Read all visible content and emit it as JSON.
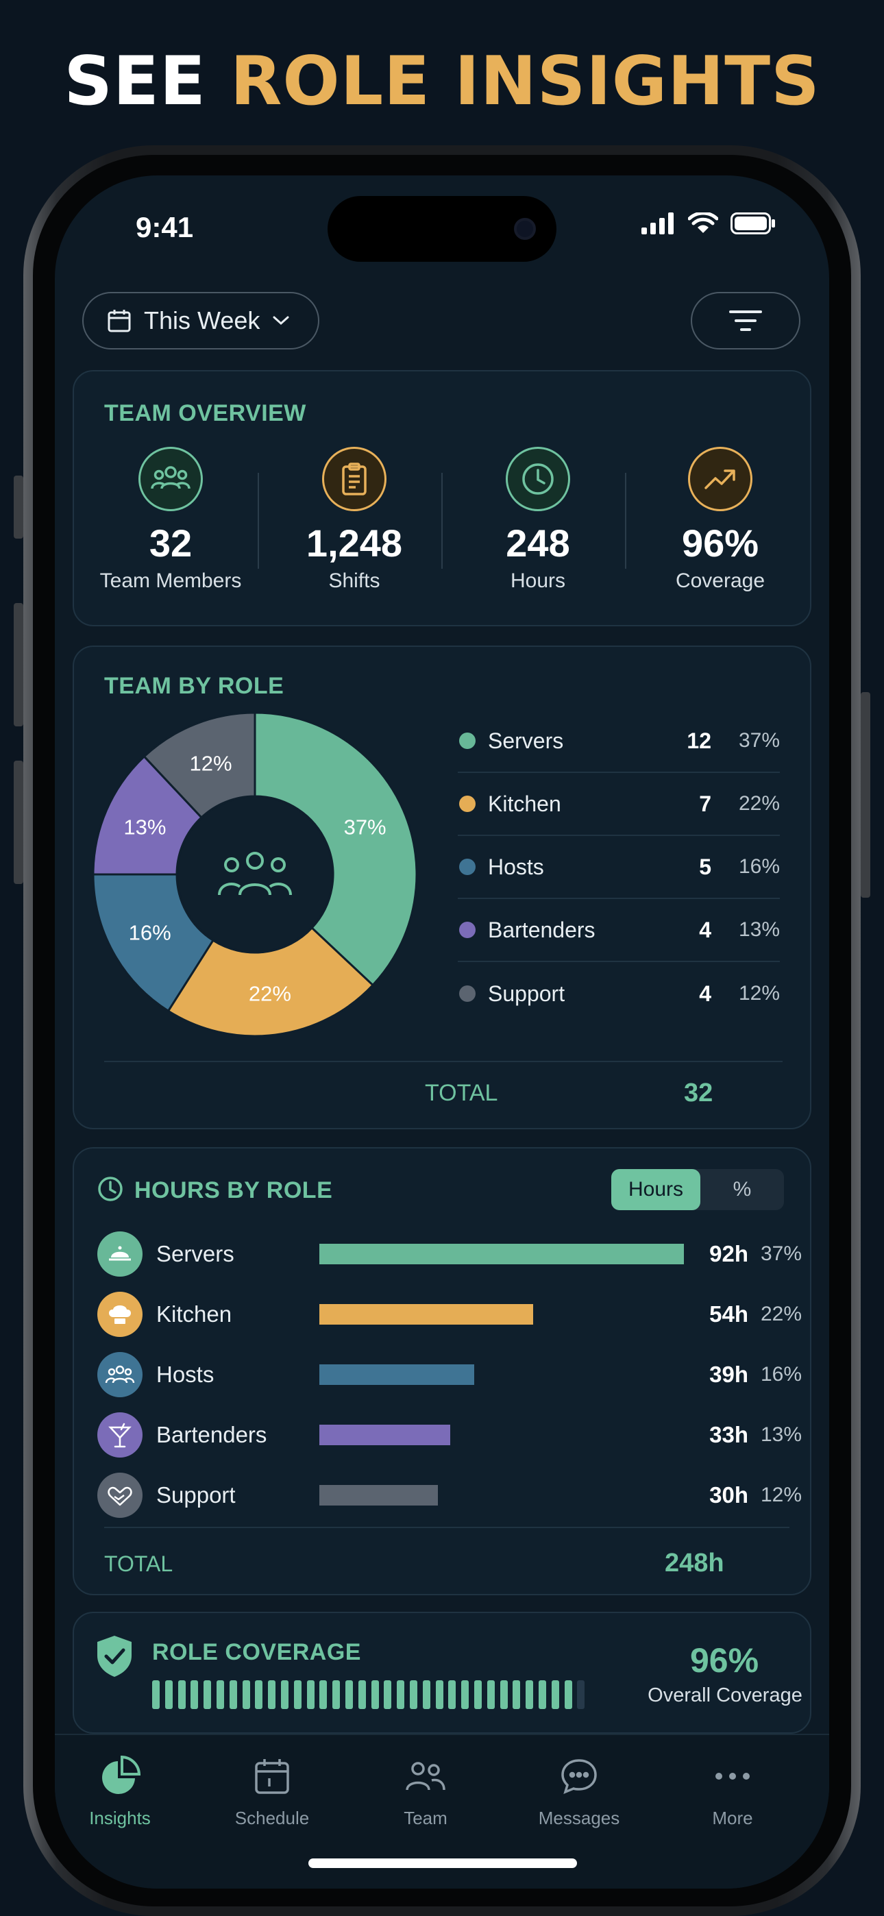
{
  "headline": {
    "white": "SEE",
    "gold": "ROLE INSIGHTS"
  },
  "status_bar": {
    "time": "9:41"
  },
  "date_filter": {
    "label": "This Week"
  },
  "team_overview": {
    "title": "TEAM OVERVIEW",
    "stats": [
      {
        "value": "32",
        "label": "Team Members",
        "icon": "people-icon",
        "color": "#6fc3a0"
      },
      {
        "value": "1,248",
        "label": "Shifts",
        "icon": "clipboard-icon",
        "color": "#e8b15a"
      },
      {
        "value": "248",
        "label": "Hours",
        "icon": "clock-icon",
        "color": "#6fc3a0"
      },
      {
        "value": "96%",
        "label": "Coverage",
        "icon": "trend-up-icon",
        "color": "#e8b15a"
      }
    ]
  },
  "team_by_role": {
    "title": "TEAM BY ROLE",
    "total_label": "TOTAL",
    "total_value": "32"
  },
  "chart_data": {
    "type": "pie",
    "title": "TEAM BY ROLE",
    "categories": [
      "Servers",
      "Kitchen",
      "Hosts",
      "Bartenders",
      "Support"
    ],
    "counts": [
      12,
      7,
      5,
      4,
      4
    ],
    "values": [
      37,
      22,
      16,
      13,
      12
    ],
    "labels": [
      "37%",
      "22%",
      "16%",
      "13%",
      "12%"
    ],
    "colors": [
      "#68b898",
      "#e5ad55",
      "#3f7494",
      "#7b6cb8",
      "#5b6470"
    ],
    "donut": true
  },
  "roles": [
    {
      "name": "Servers",
      "count": "12",
      "pct": "37%",
      "color": "#68b898"
    },
    {
      "name": "Kitchen",
      "count": "7",
      "pct": "22%",
      "color": "#e5ad55"
    },
    {
      "name": "Hosts",
      "count": "5",
      "pct": "16%",
      "color": "#3f7494"
    },
    {
      "name": "Bartenders",
      "count": "4",
      "pct": "13%",
      "color": "#7b6cb8"
    },
    {
      "name": "Support",
      "count": "4",
      "pct": "12%",
      "color": "#5b6470"
    }
  ],
  "hours_by_role": {
    "title": "HOURS BY ROLE",
    "toggle": {
      "active": "Hours",
      "inactive": "%"
    },
    "max_hours": 92,
    "rows": [
      {
        "name": "Servers",
        "hours_value": 92,
        "hours": "92h",
        "pct": "37%",
        "color": "#68b898",
        "icon": "bell-icon"
      },
      {
        "name": "Kitchen",
        "hours_value": 54,
        "hours": "54h",
        "pct": "22%",
        "color": "#e5ad55",
        "icon": "chef-hat-icon"
      },
      {
        "name": "Hosts",
        "hours_value": 39,
        "hours": "39h",
        "pct": "16%",
        "color": "#3f7494",
        "icon": "people-icon"
      },
      {
        "name": "Bartenders",
        "hours_value": 33,
        "hours": "33h",
        "pct": "13%",
        "color": "#7b6cb8",
        "icon": "cocktail-icon"
      },
      {
        "name": "Support",
        "hours_value": 30,
        "hours": "30h",
        "pct": "12%",
        "color": "#5b6470",
        "icon": "heart-hand-icon"
      }
    ],
    "total_label": "TOTAL",
    "total_value": "248h"
  },
  "role_coverage": {
    "title": "ROLE COVERAGE",
    "value": "96%",
    "label": "Overall Coverage",
    "coverage_fraction": 0.96
  },
  "tabbar": {
    "items": [
      {
        "label": "Insights",
        "icon": "pie-chart-icon",
        "active": true
      },
      {
        "label": "Schedule",
        "icon": "calendar-icon",
        "active": false
      },
      {
        "label": "Team",
        "icon": "people-icon",
        "active": false
      },
      {
        "label": "Messages",
        "icon": "chat-bubble-icon",
        "active": false
      },
      {
        "label": "More",
        "icon": "more-dots-icon",
        "active": false
      }
    ]
  }
}
